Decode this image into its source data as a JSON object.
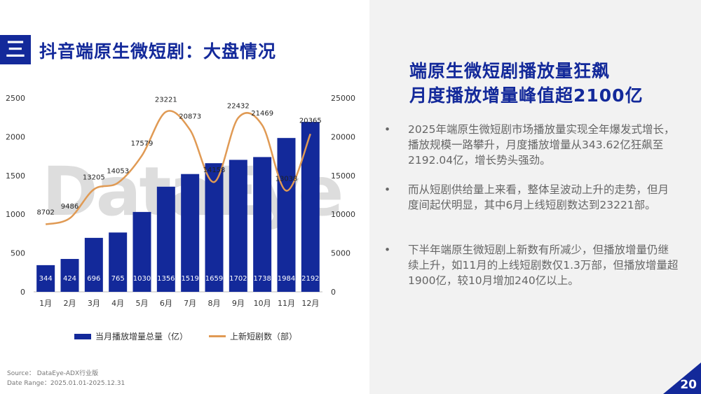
{
  "header": {
    "section_number": "三",
    "title": "抖音端原生微短剧：大盘情况"
  },
  "chart_data": {
    "type": "bar",
    "categories": [
      "1月",
      "2月",
      "3月",
      "4月",
      "5月",
      "6月",
      "7月",
      "8月",
      "9月",
      "10月",
      "11月",
      "12月"
    ],
    "series": [
      {
        "name": "当月播放增量总量（亿）",
        "type": "bar",
        "axis": "left",
        "values": [
          344,
          424,
          696,
          765,
          1030,
          1356,
          1519,
          1659,
          1702,
          1738,
          1984,
          2192
        ]
      },
      {
        "name": "上新短剧数（部）",
        "type": "line",
        "axis": "right",
        "values": [
          8702,
          9486,
          13205,
          14053,
          17579,
          23221,
          20873,
          14158,
          22432,
          21469,
          13038,
          20365
        ]
      }
    ],
    "y_left": {
      "min": 0,
      "max": 2500,
      "ticks": [
        "0",
        "500",
        "1000",
        "1500",
        "2000",
        "2500"
      ]
    },
    "y_right": {
      "min": 0,
      "max": 25000,
      "ticks": [
        "0",
        "5000",
        "10000",
        "15000",
        "20000",
        "25000"
      ]
    },
    "grid": false,
    "legend_position": "bottom",
    "colors": {
      "bar": "#13299a",
      "line": "#e09a54"
    }
  },
  "watermark": "DataEye",
  "source": {
    "line1": "Source：   DataEye-ADX行业版",
    "line2": "Date Range：2025.01.01-2025.12.31"
  },
  "right": {
    "title_line1": "端原生微短剧播放量狂飙",
    "title_line2": "月度播放增量峰值超2100亿",
    "bullets": [
      "2025年端原生微短剧市场播放量实现全年爆发式增长，播放规模一路攀升，月度播放增量从343.62亿狂飙至2192.04亿，增长势头强劲。",
      "而从短剧供给量上来看，整体呈波动上升的走势，但月度间起伏明显，其中6月上线短剧数达到23221部。",
      "下半年端原生微短剧上新数有所减少，但播放增量仍继续上升，如11月的上线短剧数仅1.3万部，但播放增量超1900亿，较10月增加240亿以上。"
    ],
    "bullet_symbol": "•"
  },
  "page_number": "20"
}
